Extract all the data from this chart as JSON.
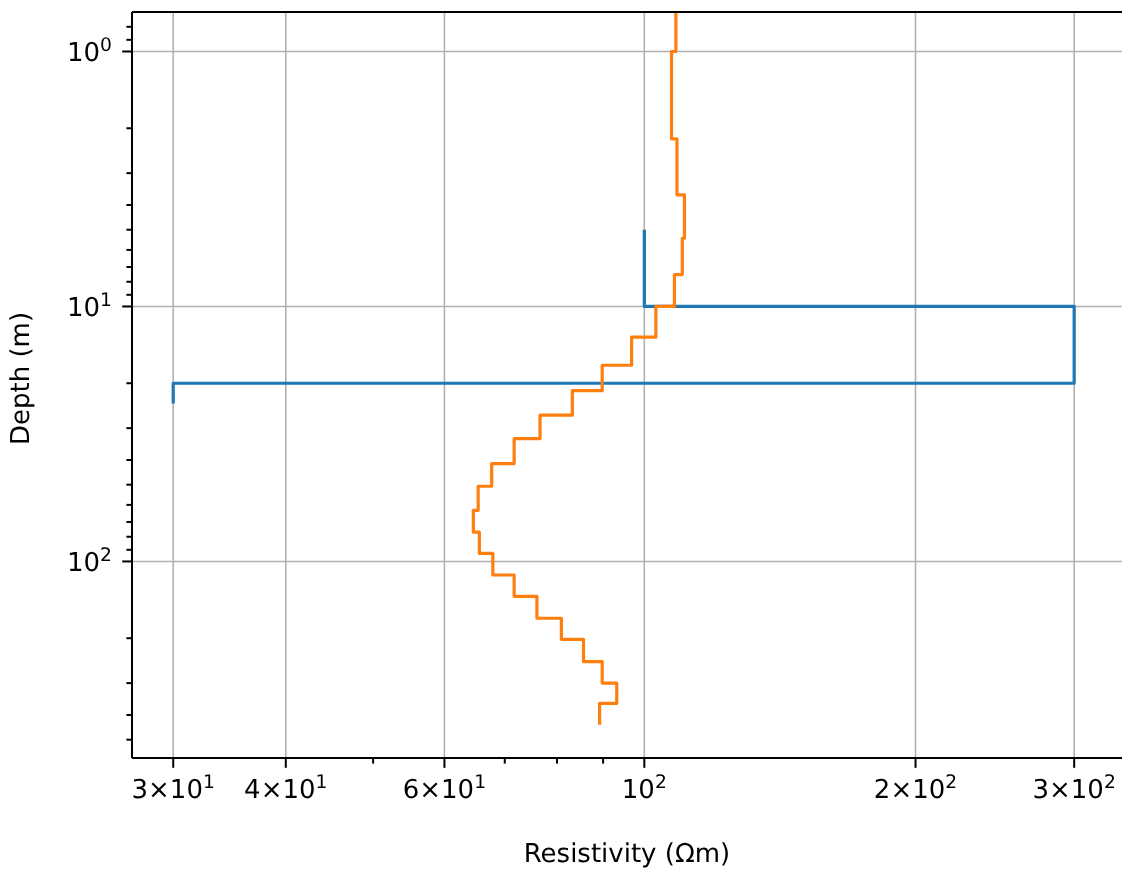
{
  "chart_data": {
    "type": "step",
    "xlabel": "Resistivity (Ωm)",
    "ylabel": "Depth (m)",
    "log": "xy",
    "grid": true,
    "marker": "none",
    "line_style": "solid",
    "xlim": [
      27,
      339
    ],
    "ylim": [
      590,
      0.7
    ],
    "xticks": [
      {
        "value": 30,
        "label": "3×10$^{1}$"
      },
      {
        "value": 40,
        "label": "4×10$^{1}$"
      },
      {
        "value": 50,
        "label": null
      },
      {
        "value": 60,
        "label": "6×10$^{1}$"
      },
      {
        "value": 70,
        "label": null
      },
      {
        "value": 80,
        "label": null
      },
      {
        "value": 90,
        "label": null
      },
      {
        "value": 100,
        "label": "10$^{2}$"
      },
      {
        "value": 200,
        "label": "2×10$^{2}$"
      },
      {
        "value": 300,
        "label": "3×10$^{2}$"
      }
    ],
    "yticks": [
      {
        "value": 0.8,
        "label": null
      },
      {
        "value": 0.9,
        "label": null
      },
      {
        "value": 1,
        "label": "10$^{0}$"
      },
      {
        "value": 2,
        "label": null
      },
      {
        "value": 3,
        "label": null
      },
      {
        "value": 4,
        "label": null
      },
      {
        "value": 5,
        "label": null
      },
      {
        "value": 6,
        "label": null
      },
      {
        "value": 7,
        "label": null
      },
      {
        "value": 8,
        "label": null
      },
      {
        "value": 9,
        "label": null
      },
      {
        "value": 10,
        "label": "10$^{1}$"
      },
      {
        "value": 20,
        "label": null
      },
      {
        "value": 30,
        "label": null
      },
      {
        "value": 40,
        "label": null
      },
      {
        "value": 50,
        "label": null
      },
      {
        "value": 60,
        "label": null
      },
      {
        "value": 70,
        "label": null
      },
      {
        "value": 80,
        "label": null
      },
      {
        "value": 90,
        "label": null
      },
      {
        "value": 100,
        "label": "10$^{2}$"
      },
      {
        "value": 200,
        "label": null
      },
      {
        "value": 300,
        "label": null
      },
      {
        "value": 400,
        "label": null
      },
      {
        "value": 500,
        "label": null
      }
    ],
    "series": [
      {
        "color": "#1f77b4",
        "x": [
          100,
          100,
          300,
          300,
          30,
          30
        ],
        "values": [
          5,
          10,
          10,
          20,
          20,
          24
        ]
      },
      {
        "color": "#ff7f0e",
        "x": [
          108.4,
          108.4,
          107.2,
          107.2,
          108.7,
          108.7,
          110.8,
          110.8,
          110.2,
          110.2,
          108,
          108,
          103,
          103,
          96.8,
          96.8,
          89.8,
          89.8,
          83.2,
          83.2,
          76.6,
          76.6,
          71.7,
          71.7,
          67.7,
          67.7,
          65.4,
          65.4,
          64.6,
          64.6,
          65.6,
          65.6,
          67.9,
          67.9,
          71.7,
          71.7,
          76,
          76,
          80.9,
          80.9,
          85.6,
          85.6,
          89.8,
          89.8,
          93.2,
          93.2,
          89.2,
          89.2
        ],
        "values": [
          0.7,
          1,
          1,
          2.2,
          2.2,
          3.65,
          3.65,
          5.4,
          5.4,
          7.5,
          7.5,
          10,
          10,
          13.2,
          13.2,
          17,
          17,
          21.4,
          21.4,
          26.7,
          26.7,
          33,
          33,
          41.3,
          41.3,
          50.7,
          50.7,
          63,
          63,
          76.8,
          76.8,
          93,
          93,
          113,
          113,
          137,
          137,
          167,
          167,
          202,
          202,
          247,
          247,
          300,
          300,
          360,
          360,
          437
        ]
      }
    ]
  }
}
